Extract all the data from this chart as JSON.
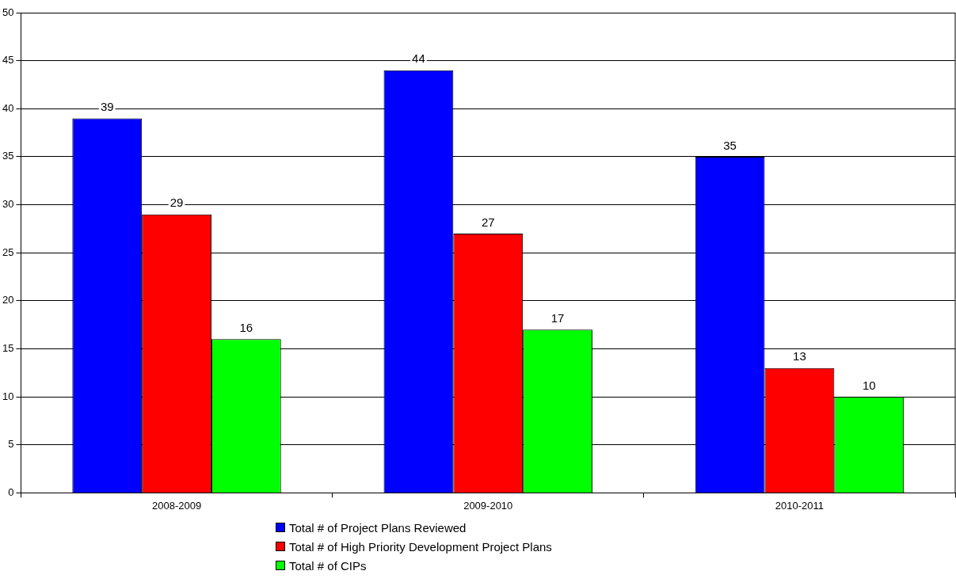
{
  "chart_data": {
    "type": "bar",
    "categories": [
      "2008-2009",
      "2009-2010",
      "2010-2011"
    ],
    "series": [
      {
        "name": "Total # of Project Plans Reviewed",
        "color": "#0000ff",
        "values": [
          39,
          44,
          35
        ]
      },
      {
        "name": "Total # of High Priority Development Project Plans",
        "color": "#ff0000",
        "values": [
          29,
          27,
          13
        ]
      },
      {
        "name": "Total # of CIPs",
        "color": "#00ff00",
        "values": [
          16,
          17,
          10
        ]
      }
    ],
    "ylim": [
      0,
      50
    ],
    "yticks": [
      0,
      5,
      10,
      15,
      20,
      25,
      30,
      35,
      40,
      45,
      50
    ],
    "grid": "y",
    "legend": "bottom",
    "data_labels": true
  }
}
